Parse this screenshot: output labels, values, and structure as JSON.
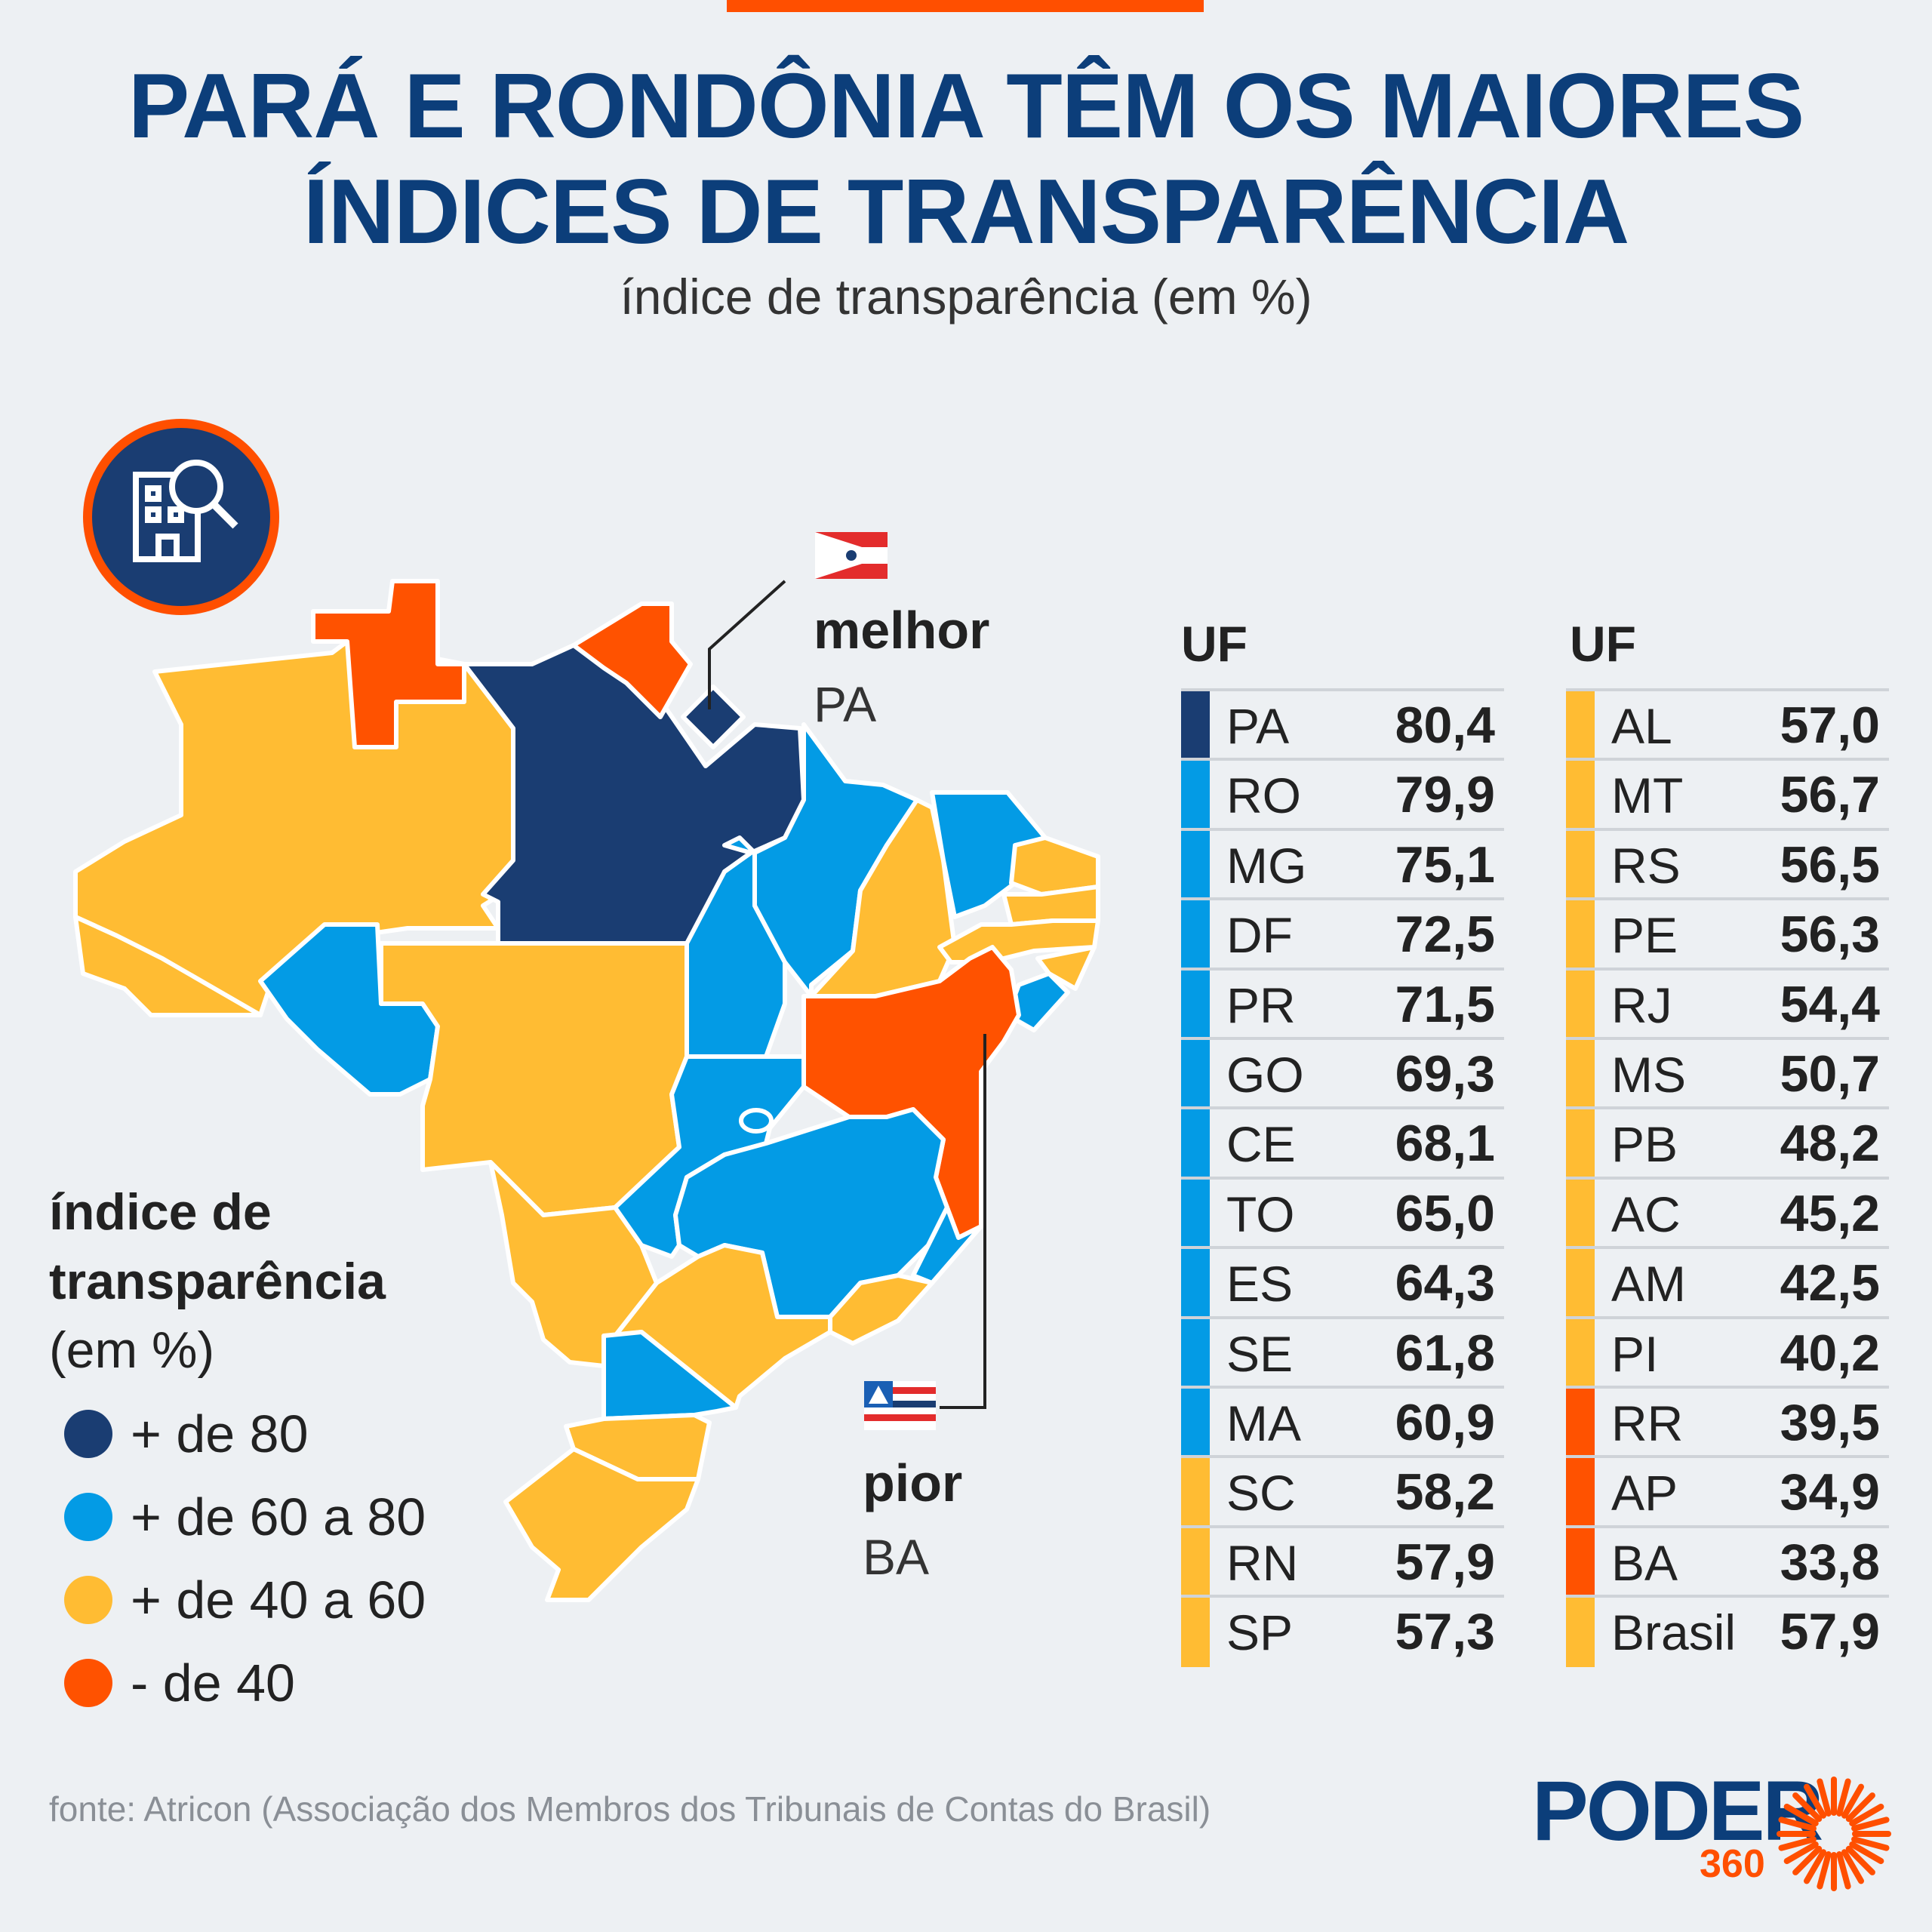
{
  "title_line1": "PARÁ E RONDÔNIA TÊM OS MAIORES",
  "title_line2": "ÍNDICES DE TRANSPARÊNCIA",
  "subtitle": "índice de transparência (em %)",
  "best": {
    "label": "melhor",
    "uf": "PA"
  },
  "worst": {
    "label": "pior",
    "uf": "BA"
  },
  "legend": {
    "title_line1": "índice de",
    "title_line2": "transparência",
    "unit": "(em %)",
    "items": [
      {
        "label": "+ de 80",
        "color": "#1a3d72"
      },
      {
        "label": "+ de 60 a 80",
        "color": "#039be5"
      },
      {
        "label": "+ de 40 a 60",
        "color": "#ffbc33"
      },
      {
        "label": "-  de 40",
        "color": "#ff5200"
      }
    ]
  },
  "table": {
    "header_left": "UF",
    "header_right": "UF",
    "left": [
      {
        "uf": "PA",
        "value": "80,4",
        "color": "#1a3d72"
      },
      {
        "uf": "RO",
        "value": "79,9",
        "color": "#039be5"
      },
      {
        "uf": "MG",
        "value": "75,1",
        "color": "#039be5"
      },
      {
        "uf": "DF",
        "value": "72,5",
        "color": "#039be5"
      },
      {
        "uf": "PR",
        "value": "71,5",
        "color": "#039be5"
      },
      {
        "uf": "GO",
        "value": "69,3",
        "color": "#039be5"
      },
      {
        "uf": "CE",
        "value": "68,1",
        "color": "#039be5"
      },
      {
        "uf": "TO",
        "value": "65,0",
        "color": "#039be5"
      },
      {
        "uf": "ES",
        "value": "64,3",
        "color": "#039be5"
      },
      {
        "uf": "SE",
        "value": "61,8",
        "color": "#039be5"
      },
      {
        "uf": "MA",
        "value": "60,9",
        "color": "#039be5"
      },
      {
        "uf": "SC",
        "value": "58,2",
        "color": "#ffbc33"
      },
      {
        "uf": "RN",
        "value": "57,9",
        "color": "#ffbc33"
      },
      {
        "uf": "SP",
        "value": "57,3",
        "color": "#ffbc33"
      }
    ],
    "right": [
      {
        "uf": "AL",
        "value": "57,0",
        "color": "#ffbc33"
      },
      {
        "uf": "MT",
        "value": "56,7",
        "color": "#ffbc33"
      },
      {
        "uf": "RS",
        "value": "56,5",
        "color": "#ffbc33"
      },
      {
        "uf": "PE",
        "value": "56,3",
        "color": "#ffbc33"
      },
      {
        "uf": "RJ",
        "value": "54,4",
        "color": "#ffbc33"
      },
      {
        "uf": "MS",
        "value": "50,7",
        "color": "#ffbc33"
      },
      {
        "uf": "PB",
        "value": "48,2",
        "color": "#ffbc33"
      },
      {
        "uf": "AC",
        "value": "45,2",
        "color": "#ffbc33"
      },
      {
        "uf": "AM",
        "value": "42,5",
        "color": "#ffbc33"
      },
      {
        "uf": "PI",
        "value": "40,2",
        "color": "#ffbc33"
      },
      {
        "uf": "RR",
        "value": "39,5",
        "color": "#ff5200"
      },
      {
        "uf": "AP",
        "value": "34,9",
        "color": "#ff5200"
      },
      {
        "uf": "BA",
        "value": "33,8",
        "color": "#ff5200"
      },
      {
        "uf": "Brasil",
        "value": "57,9",
        "color": "#ffbc33"
      }
    ]
  },
  "source": "fonte: Atricon (Associação dos Membros dos Tribunais de Contas do Brasil)",
  "logo": {
    "word": "PODER",
    "number": "360",
    "color_primary": "#0c3e7a",
    "color_accent": "#ff4f00"
  }
}
